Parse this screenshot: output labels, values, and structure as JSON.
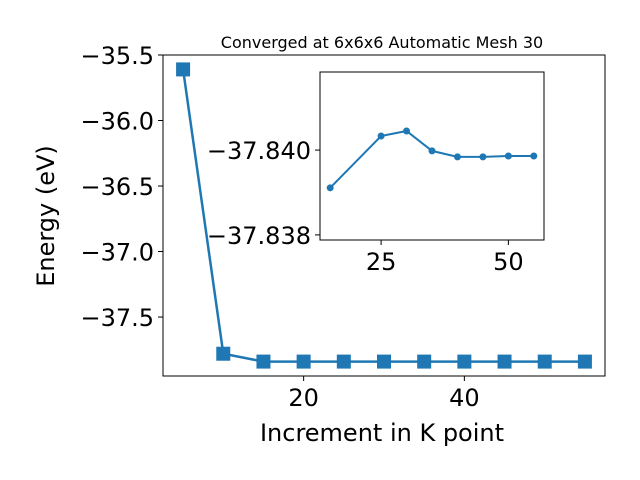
{
  "chart_data": [
    {
      "type": "line",
      "title": "Converged at 6x6x6 Automatic Mesh 30",
      "x_label": "Increment in K point",
      "y_label": "Energy (eV)",
      "x": [
        5,
        10,
        15,
        20,
        25,
        30,
        35,
        40,
        45,
        50,
        55
      ],
      "series": [
        {
          "color": "#1f77b4",
          "marker": "square",
          "values": [
            -35.61,
            -37.78,
            -37.84,
            -37.84,
            -37.84,
            -37.84,
            -37.84,
            -37.84,
            -37.84,
            -37.84,
            -37.84
          ]
        }
      ],
      "xlim": [
        2.5,
        57.5
      ],
      "xticks": [
        20,
        40
      ],
      "ylim": [
        -37.95,
        -35.5
      ],
      "yticks": [
        {
          "value": -35.5,
          "label": "−35.5"
        },
        {
          "value": -36.0,
          "label": "−36.0"
        },
        {
          "value": -36.5,
          "label": "−36.5"
        },
        {
          "value": -37.0,
          "label": "−37.0"
        },
        {
          "value": -37.5,
          "label": "−37.5"
        }
      ]
    },
    {
      "type": "line",
      "x": [
        15,
        25,
        30,
        35,
        40,
        45,
        50,
        55
      ],
      "series": [
        {
          "color": "#1f77b4",
          "marker": "circle",
          "values": [
            -37.83911,
            -37.84033,
            -37.84045,
            -37.83998,
            -37.83984,
            -37.83984,
            -37.83986,
            -37.83986
          ]
        }
      ],
      "xlim": [
        13,
        57
      ],
      "xticks": [
        25,
        50
      ],
      "ylim": [
        -37.83788,
        -37.84184
      ],
      "yticks": [
        {
          "value": -37.84,
          "label": "−37.840"
        },
        {
          "value": -37.838,
          "label": "−37.838"
        }
      ]
    }
  ]
}
